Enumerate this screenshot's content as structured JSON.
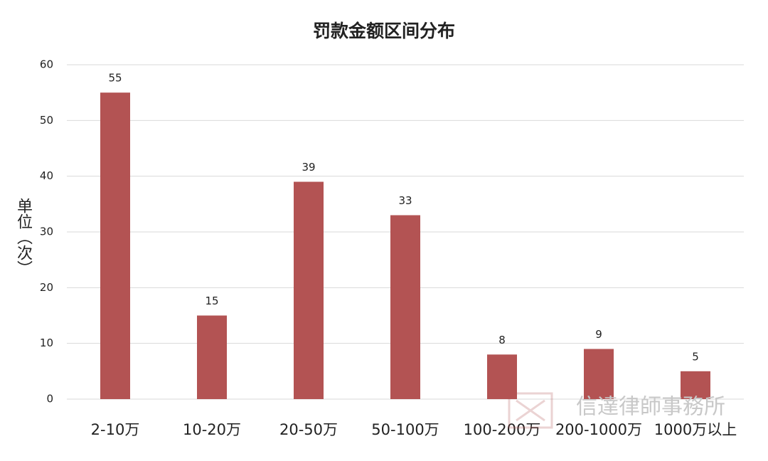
{
  "chart_data": {
    "type": "bar",
    "title": "罚款金额区间分布",
    "y_label": "单位（次）",
    "categories": [
      "2-10万",
      "10-20万",
      "20-50万",
      "50-100万",
      "100-200万",
      "200-1000万",
      "1000万以上"
    ],
    "values": [
      55,
      15,
      39,
      33,
      8,
      9,
      5
    ],
    "color": "#b35353",
    "ylim": [
      0,
      60
    ],
    "yticks": [
      0,
      10,
      20,
      30,
      40,
      50,
      60
    ],
    "grid": true,
    "watermark": "信達律師事務所"
  }
}
